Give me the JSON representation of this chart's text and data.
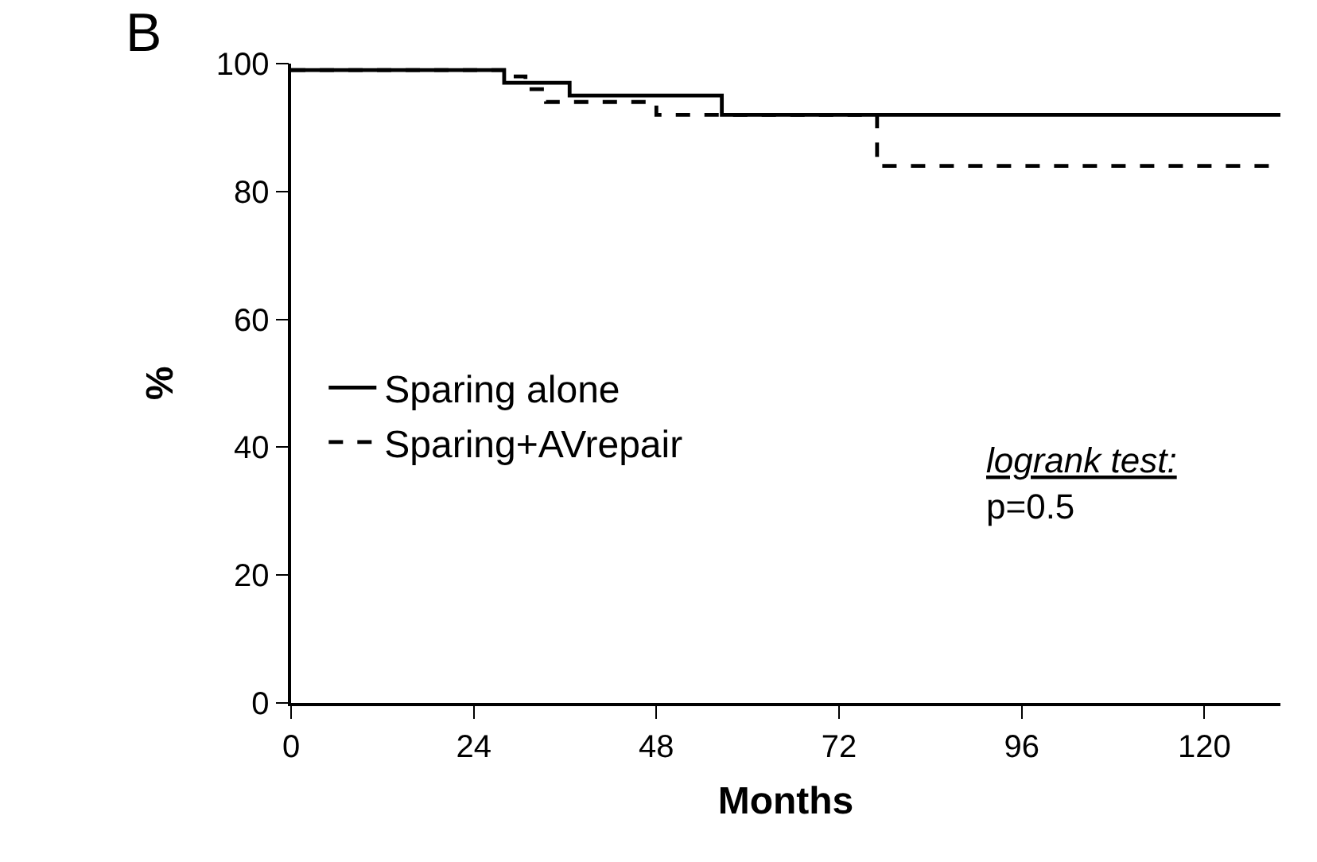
{
  "chart_data": {
    "type": "step",
    "title": "B",
    "xlabel": "Months",
    "ylabel": "%",
    "series": [
      {
        "name": "Sparing alone",
        "color": "#000000",
        "line_style": "solid",
        "x": [
          0,
          28,
          30,
          36.6,
          56.6,
          130
        ],
        "values": [
          99,
          97,
          97,
          95,
          92,
          92
        ]
      },
      {
        "name": "Sparing+AVrepair",
        "color": "#000000",
        "line_style": "dashed",
        "x": [
          0,
          29,
          30.8,
          33.5,
          48,
          77,
          130
        ],
        "values": [
          99,
          98,
          96,
          94,
          92,
          84,
          84
        ]
      }
    ],
    "xlim": [
      0,
      130
    ],
    "xticks": [
      0,
      24,
      48,
      72,
      96,
      120
    ],
    "ylim": [
      0,
      100
    ],
    "yticks": [
      0,
      20,
      40,
      60,
      80,
      100
    ],
    "grid": false,
    "legend": "left",
    "marker": "none",
    "annotations": [
      "logrank test:",
      "p=0.5"
    ]
  }
}
